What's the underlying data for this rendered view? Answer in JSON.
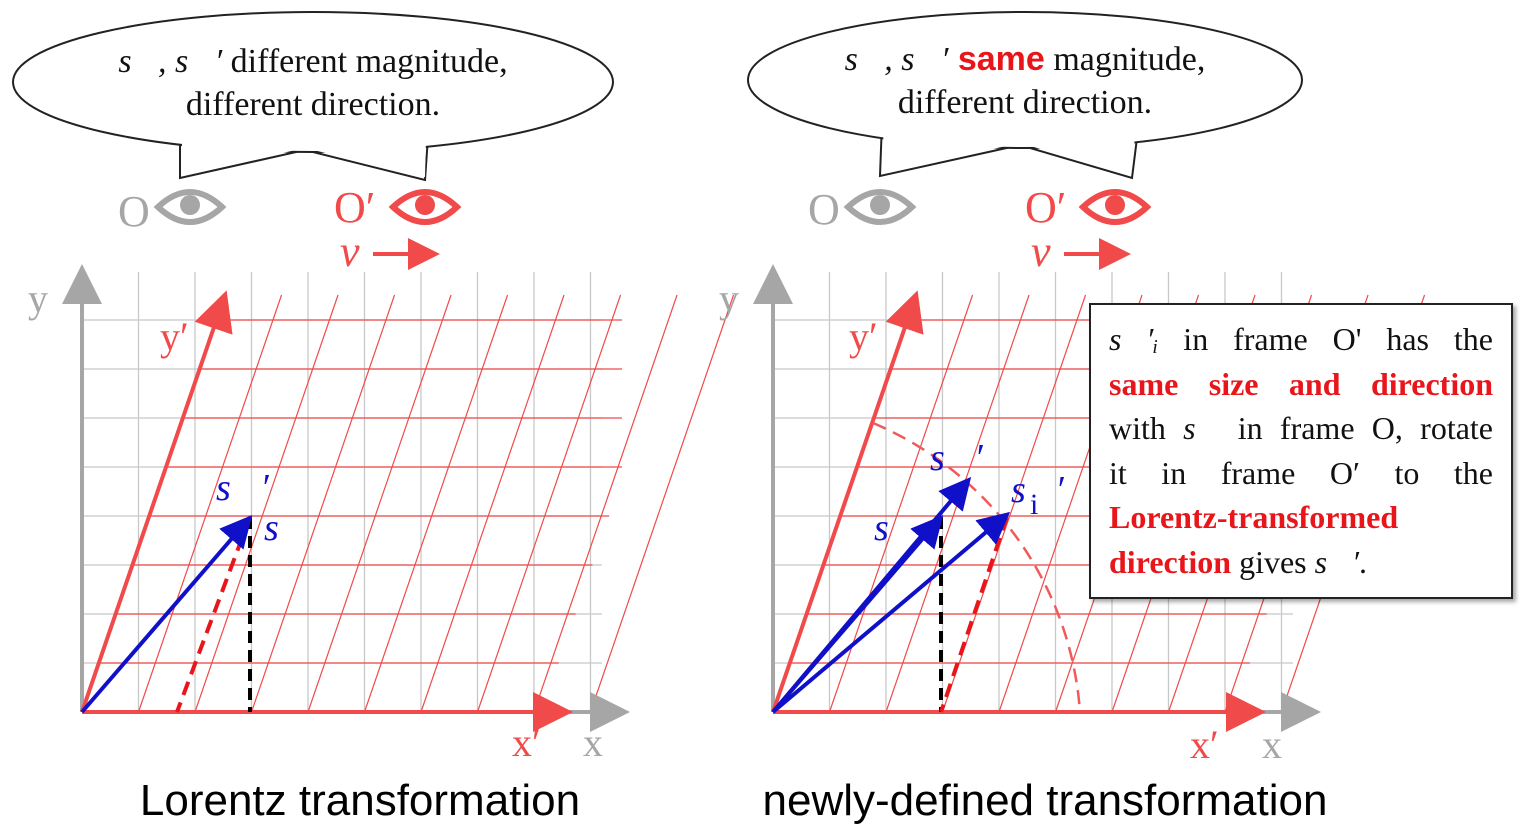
{
  "colors": {
    "grid_gray": "#bfbfbf",
    "axis_gray": "#a6a6a6",
    "red_frame": "#f04a4a",
    "red_text": "#e8161b",
    "blue_vector": "#1010c8",
    "black_dash": "#000000"
  },
  "left_panel": {
    "bubble": {
      "line1_vectors": "s⃗, s⃗′",
      "line1_rest": " different magnitude,",
      "line2": "different direction."
    },
    "observer_O": {
      "label": "O",
      "icon": "eye-icon"
    },
    "observer_Oprime": {
      "label": "O′",
      "icon": "eye-icon"
    },
    "velocity": "v",
    "axis_y": "y",
    "axis_yprime": "y′",
    "axis_x": "x",
    "axis_xprime": "x′",
    "vec_sprime": "s⃗′",
    "vec_s": "s⃗",
    "caption": "Lorentz transformation"
  },
  "right_panel": {
    "bubble": {
      "line1_vectors": "s⃗, s⃗′",
      "line1_highlight": " same",
      "line1_rest": " magnitude,",
      "line2": "different direction."
    },
    "observer_O": {
      "label": "O",
      "icon": "eye-icon"
    },
    "observer_Oprime": {
      "label": "O′",
      "icon": "eye-icon"
    },
    "velocity": "v",
    "axis_y": "y",
    "axis_yprime": "y′",
    "axis_x": "x",
    "axis_xprime": "x′",
    "vec_sprime": "s⃗′",
    "vec_s": "s⃗",
    "vec_si_prime": "s⃗′",
    "vec_si_sub": "i",
    "caption": "newly-defined transformation",
    "info_box": {
      "l1_vec": "s⃗′ᵢ",
      "l1_text": " in frame O' has the",
      "l2_red": "same size and direction",
      "l3_a": "with ",
      "l3_vec": "s⃗",
      "l3_b": " in frame O, rotate",
      "l4": "it in frame O′ to the",
      "l5_red": "Lorentz-transformed",
      "l6_red": "direction",
      "l6_a": " gives ",
      "l6_vec": "s⃗′",
      "l6_b": "."
    }
  }
}
